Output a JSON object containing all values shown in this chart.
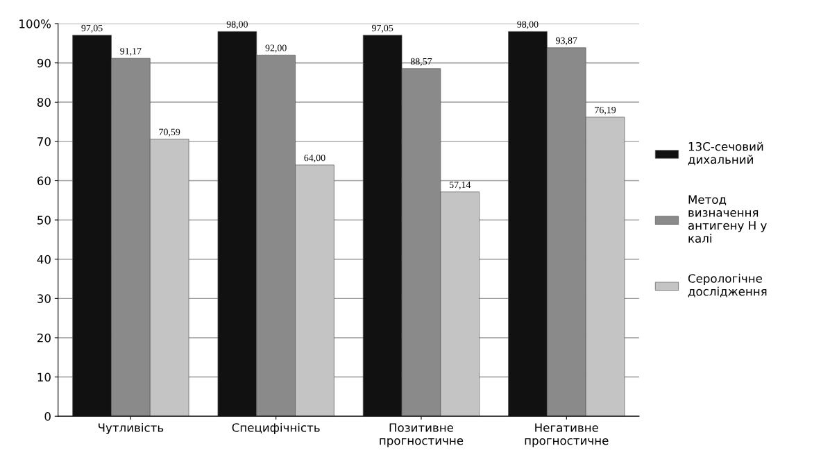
{
  "chart_data": {
    "type": "bar",
    "categories": [
      "Чутливість",
      "Специфічність",
      "Позитивне прогностичне",
      "Негативне прогностичне"
    ],
    "series": [
      {
        "name": "13С-сечовий дихальний",
        "color": "#111111",
        "values": [
          97.05,
          98.0,
          97.05,
          98.0
        ],
        "value_labels": [
          "97,05",
          "98,00",
          "97,05",
          "98,00"
        ]
      },
      {
        "name": "Метод визначення антигену Н у калі",
        "color": "#8a8a8a",
        "values": [
          91.17,
          92.0,
          88.57,
          93.87
        ],
        "value_labels": [
          "91,17",
          "92,00",
          "88,57",
          "93,87"
        ]
      },
      {
        "name": "Серологічне дослідження",
        "color": "#c4c4c4",
        "values": [
          70.59,
          64.0,
          57.14,
          76.19
        ],
        "value_labels": [
          "70,59",
          "64,00",
          "57,14",
          "76,19"
        ]
      }
    ],
    "ylim": [
      0,
      100
    ],
    "yticks": [
      0,
      10,
      20,
      30,
      40,
      50,
      60,
      70,
      80,
      90,
      {
        "value": 100,
        "label": "100%"
      }
    ],
    "grid": "y",
    "legend": "right"
  }
}
